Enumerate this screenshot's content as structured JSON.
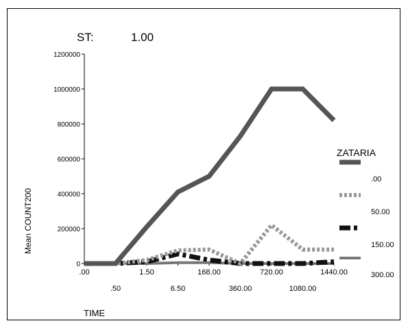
{
  "panel": {
    "label": "ST:",
    "value": "1.00"
  },
  "chart_data": {
    "type": "line",
    "ylabel": "Mean COUNT200",
    "xlabel": "TIME",
    "ylim": [
      0,
      1200000
    ],
    "yticks": [
      0,
      200000,
      400000,
      600000,
      800000,
      1000000,
      1200000
    ],
    "ytick_labels": [
      "0",
      "200000",
      "400000",
      "600000",
      "800000",
      "1000000",
      "1200000"
    ],
    "categories": [
      ".00",
      ".50",
      "1.50",
      "6.50",
      "168.00",
      "360.00",
      "720.00",
      "1080.00",
      "1440.00"
    ],
    "legend": {
      "title": "ZATARIA",
      "position": "right"
    },
    "series": [
      {
        "name": ".00",
        "color": "#555555",
        "dash": "solid",
        "values": [
          0,
          0,
          210000,
          410000,
          500000,
          730000,
          1000000,
          1000000,
          820000
        ]
      },
      {
        "name": "50.00",
        "color": "#999999",
        "dash": "dot",
        "values": [
          0,
          0,
          20000,
          75000,
          80000,
          0,
          220000,
          80000,
          80000
        ]
      },
      {
        "name": "150.00",
        "color": "#111111",
        "dash": "dashdot",
        "values": [
          0,
          0,
          10000,
          55000,
          20000,
          0,
          0,
          0,
          10000
        ]
      },
      {
        "name": "300.00",
        "color": "#777777",
        "dash": "solid-thin",
        "values": [
          0,
          0,
          0,
          5000,
          5000,
          0,
          0,
          0,
          0
        ]
      }
    ]
  }
}
